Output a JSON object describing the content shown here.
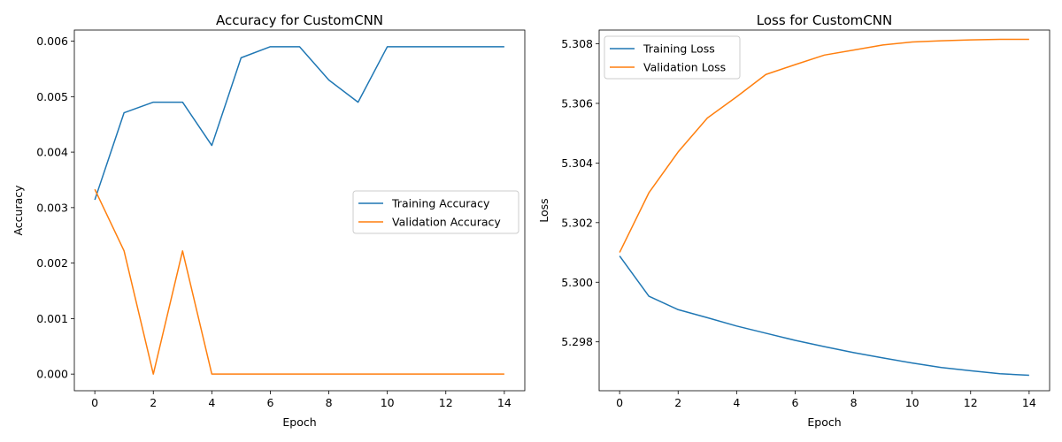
{
  "chart_data": [
    {
      "type": "line",
      "title": "Accuracy for CustomCNN",
      "xlabel": "Epoch",
      "ylabel": "Accuracy",
      "x": [
        0,
        1,
        2,
        3,
        4,
        5,
        6,
        7,
        8,
        9,
        10,
        11,
        12,
        13,
        14
      ],
      "xticks": [
        "0",
        "2",
        "4",
        "6",
        "8",
        "10",
        "12",
        "14"
      ],
      "xtick_values": [
        0,
        2,
        4,
        6,
        8,
        10,
        12,
        14
      ],
      "yticks": [
        "0.000",
        "0.001",
        "0.002",
        "0.003",
        "0.004",
        "0.005",
        "0.006"
      ],
      "ytick_values": [
        0,
        0.001,
        0.002,
        0.003,
        0.004,
        0.005,
        0.006
      ],
      "xlim": [
        -0.7,
        14.7
      ],
      "ylim": [
        -0.0003,
        0.0062
      ],
      "legend_position": "center-right",
      "series": [
        {
          "name": "Training Accuracy",
          "color": "#1f77b4",
          "values": [
            0.00314,
            0.00471,
            0.0049,
            0.0049,
            0.00412,
            0.0057,
            0.0059,
            0.0059,
            0.0053,
            0.0049,
            0.0059,
            0.0059,
            0.0059,
            0.0059,
            0.0059
          ]
        },
        {
          "name": "Validation Accuracy",
          "color": "#ff7f0e",
          "values": [
            0.00333,
            0.00222,
            0.0,
            0.00222,
            0.0,
            0.0,
            0.0,
            0.0,
            0.0,
            0.0,
            0.0,
            0.0,
            0.0,
            0.0,
            0.0
          ]
        }
      ]
    },
    {
      "type": "line",
      "title": "Loss for CustomCNN",
      "xlabel": "Epoch",
      "ylabel": "Loss",
      "x": [
        0,
        1,
        2,
        3,
        4,
        5,
        6,
        7,
        8,
        9,
        10,
        11,
        12,
        13,
        14
      ],
      "xticks": [
        "0",
        "2",
        "4",
        "6",
        "8",
        "10",
        "12",
        "14"
      ],
      "xtick_values": [
        0,
        2,
        4,
        6,
        8,
        10,
        12,
        14
      ],
      "yticks": [
        "5.298",
        "5.300",
        "5.302",
        "5.304",
        "5.306",
        "5.308"
      ],
      "ytick_values": [
        5.298,
        5.3,
        5.302,
        5.304,
        5.306,
        5.308
      ],
      "xlim": [
        -0.7,
        14.7
      ],
      "ylim": [
        5.29636,
        5.30846
      ],
      "legend_position": "upper-left",
      "series": [
        {
          "name": "Training Loss",
          "color": "#1f77b4",
          "values": [
            5.30088,
            5.29953,
            5.29908,
            5.29881,
            5.29853,
            5.29829,
            5.29805,
            5.29784,
            5.29764,
            5.29746,
            5.29729,
            5.29714,
            5.29703,
            5.29693,
            5.29688
          ]
        },
        {
          "name": "Validation Loss",
          "color": "#ff7f0e",
          "values": [
            5.301,
            5.303,
            5.30437,
            5.30551,
            5.30622,
            5.30697,
            5.3073,
            5.30762,
            5.30779,
            5.30796,
            5.30806,
            5.3081,
            5.30813,
            5.30815,
            5.30815
          ]
        }
      ]
    }
  ]
}
